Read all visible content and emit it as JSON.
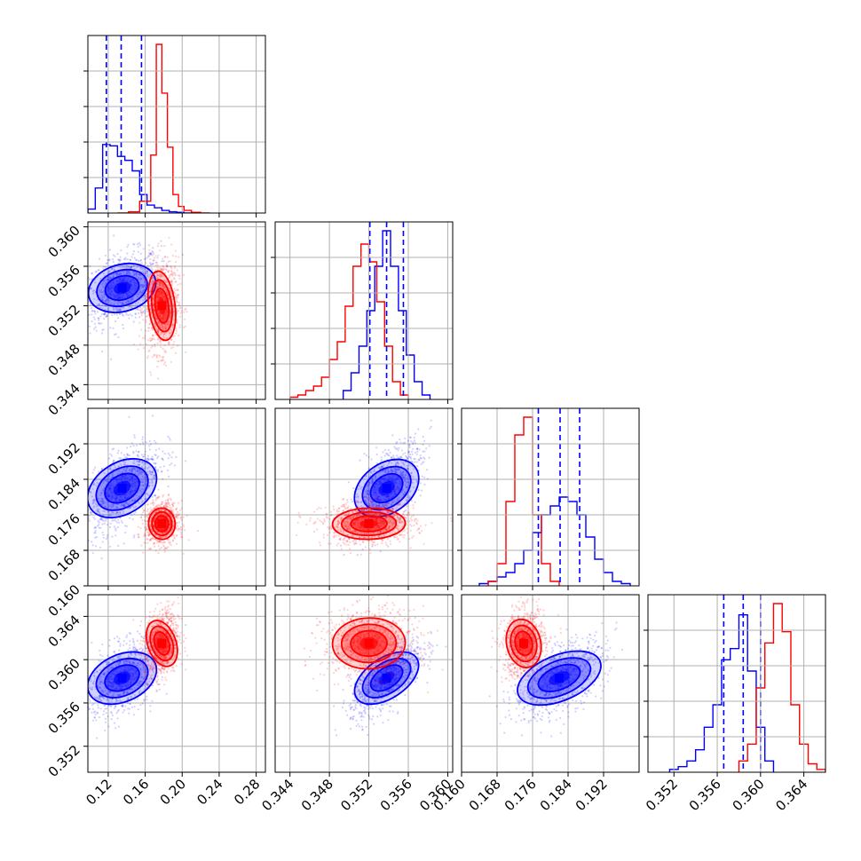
{
  "chart_data": {
    "type": "scatter",
    "colors": {
      "series_a": "#0000ff",
      "series_b": "#ff0000",
      "grid": "#b0b0b0"
    },
    "grid": true,
    "n_params": 4,
    "ranges": [
      [
        0.098,
        0.29
      ],
      [
        0.3425,
        0.3605
      ],
      [
        0.16,
        0.2
      ]
    ],
    "range_p3": [
      0.3496,
      0.366
    ],
    "tick_labels": {
      "p0": [
        "0.12",
        "0.16",
        "0.20",
        "0.24",
        "0.28"
      ],
      "p1": [
        "0.344",
        "0.348",
        "0.352",
        "0.356",
        "0.360"
      ],
      "p2": [
        "0.160",
        "0.168",
        "0.176",
        "0.184",
        "0.192"
      ],
      "p3": [
        "0.352",
        "0.356",
        "0.360",
        "0.364"
      ]
    },
    "tick_values": {
      "p0": [
        0.12,
        0.16,
        0.2,
        0.24,
        0.28
      ],
      "p1": [
        0.344,
        0.348,
        0.352,
        0.356,
        0.36
      ],
      "p2": [
        0.16,
        0.168,
        0.176,
        0.184,
        0.192
      ],
      "p3": [
        0.352,
        0.356,
        0.36,
        0.364
      ]
    },
    "quantiles_blue": {
      "p0": [
        0.118,
        0.134,
        0.156
      ],
      "p1": [
        0.3521,
        0.3538,
        0.3555
      ],
      "p2": [
        0.1773,
        0.1822,
        0.1866
      ],
      "p3": [
        0.3566,
        0.3584,
        0.36
      ]
    },
    "series": [
      {
        "color": "blue",
        "means": [
          0.135,
          0.3538,
          0.182,
          0.3583
        ],
        "stds": [
          0.016,
          0.0014,
          0.004,
          0.0014
        ],
        "hist": {
          "p0": {
            "edges": [
              0.098,
              0.106,
              0.114,
              0.122,
              0.13,
              0.138,
              0.146,
              0.154,
              0.162,
              0.17,
              0.178,
              0.186,
              0.194,
              0.202,
              0.21
            ],
            "counts": [
              3,
              19,
              52,
              51,
              43,
              40,
              32,
              14,
              6,
              4,
              2,
              1,
              0.5,
              0
            ]
          },
          "p1": {
            "edges": [
              0.3494,
              0.3502,
              0.351,
              0.3518,
              0.3526,
              0.3534,
              0.3542,
              0.355,
              0.3558,
              0.3566,
              0.3574,
              0.3582
            ],
            "counts": [
              2,
              6,
              12,
              20,
              30,
              38,
              30,
              20,
              10,
              4,
              1
            ]
          },
          "p2": {
            "edges": [
              0.164,
              0.166,
              0.168,
              0.17,
              0.172,
              0.174,
              0.176,
              0.178,
              0.18,
              0.182,
              0.184,
              0.186,
              0.188,
              0.19,
              0.192,
              0.194,
              0.196,
              0.198
            ],
            "counts": [
              0.5,
              1,
              2,
              3,
              5,
              8,
              12,
              16,
              18,
              20,
              19,
              16,
              11,
              6,
              3,
              1,
              0.5
            ]
          },
          "p3": {
            "edges": [
              0.3516,
              0.3524,
              0.3532,
              0.354,
              0.3548,
              0.3556,
              0.3564,
              0.3572,
              0.358,
              0.3588,
              0.3596,
              0.3604,
              0.3612
            ],
            "counts": [
              0.5,
              1,
              2,
              4,
              8,
              12,
              20,
              22,
              28,
              18,
              8,
              2
            ]
          }
        }
      },
      {
        "color": "red",
        "means": [
          0.178,
          0.352,
          0.174,
          0.3615
        ],
        "stds": [
          0.007,
          0.0018,
          0.0018,
          0.0012
        ],
        "hist": {
          "p0": {
            "edges": [
              0.13,
              0.142,
              0.154,
              0.166,
              0.172,
              0.178,
              0.184,
              0.19,
              0.196,
              0.202,
              0.21,
              0.22,
              0.23
            ],
            "counts": [
              0,
              1,
              9,
              44,
              128,
              91,
              50,
              14,
              5,
              2,
              0.5,
              0
            ]
          },
          "p1": {
            "edges": [
              0.344,
              0.3448,
              0.3456,
              0.3464,
              0.3472,
              0.348,
              0.3488,
              0.3496,
              0.3504,
              0.3512,
              0.352,
              0.3528,
              0.3536,
              0.3544,
              0.3552,
              0.356
            ],
            "counts": [
              0.5,
              1,
              2,
              3,
              5,
              9,
              13,
              21,
              30,
              35,
              31,
              22,
              12,
              4,
              1
            ]
          },
          "p2": {
            "edges": [
              0.166,
              0.168,
              0.17,
              0.172,
              0.174,
              0.176,
              0.178,
              0.18,
              0.182
            ],
            "counts": [
              1,
              5,
              19,
              34,
              38,
              16,
              5,
              1
            ]
          },
          "p3": {
            "edges": [
              0.358,
              0.3588,
              0.3596,
              0.3604,
              0.3612,
              0.362,
              0.3628,
              0.3636,
              0.3644,
              0.3652,
              0.366
            ],
            "counts": [
              2,
              5,
              15,
              23,
              30,
              25,
              12,
              5,
              1.5,
              0.5
            ]
          }
        }
      }
    ]
  }
}
